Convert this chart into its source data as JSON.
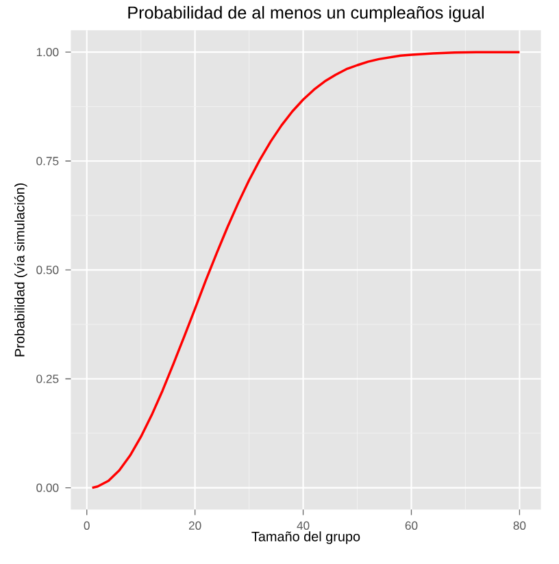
{
  "chart_data": {
    "type": "line",
    "title": "Probabilidad de al menos un cumpleaños igual",
    "xlabel": "Tamaño del grupo",
    "ylabel": "Probabilidad (vía simulación)",
    "xlim": [
      -2.95,
      83.95
    ],
    "ylim": [
      -0.05,
      1.05
    ],
    "xticks": [
      0,
      20,
      40,
      60,
      80
    ],
    "yticks": [
      {
        "value": 0,
        "label": "0.00"
      },
      {
        "value": 0.25,
        "label": "0.25"
      },
      {
        "value": 0.5,
        "label": "0.50"
      },
      {
        "value": 0.75,
        "label": "0.75"
      },
      {
        "value": 1,
        "label": "1.00"
      }
    ],
    "grid": true,
    "marker": "none",
    "line_style": "solid",
    "series": [
      {
        "color": "#ff0000",
        "x": [
          1,
          2,
          4,
          6,
          8,
          10,
          12,
          14,
          16,
          18,
          20,
          22,
          24,
          26,
          28,
          30,
          32,
          34,
          36,
          38,
          40,
          42,
          44,
          46,
          48,
          50,
          52,
          54,
          56,
          58,
          60,
          64,
          68,
          72,
          76,
          80
        ],
        "values": [
          0,
          0.003,
          0.016,
          0.04,
          0.074,
          0.117,
          0.167,
          0.223,
          0.284,
          0.347,
          0.411,
          0.476,
          0.538,
          0.598,
          0.654,
          0.706,
          0.753,
          0.795,
          0.832,
          0.864,
          0.891,
          0.914,
          0.933,
          0.948,
          0.961,
          0.97,
          0.978,
          0.984,
          0.988,
          0.992,
          0.994,
          0.997,
          0.999,
          1,
          1,
          1
        ]
      }
    ]
  }
}
